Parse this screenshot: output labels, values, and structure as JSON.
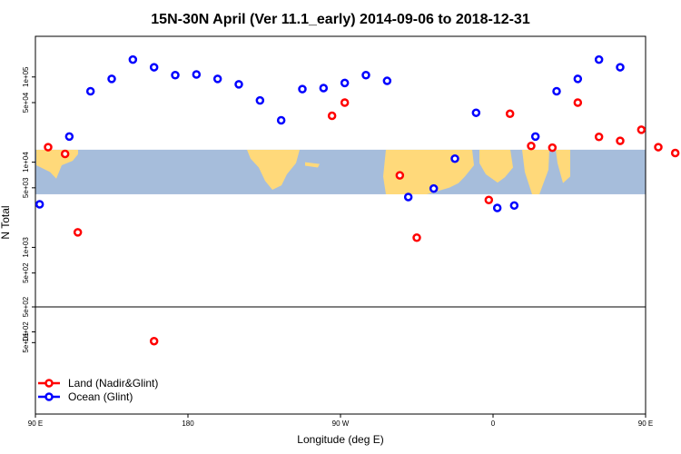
{
  "chart_data": {
    "type": "scatter",
    "title": "15N-30N April (Ver 11.1_early)   2014-09-06 to 2018-12-31",
    "xlabel": "Longitude (deg E)",
    "ylabel": "N Total",
    "xlim": [
      90,
      450
    ],
    "x_ticks": [
      {
        "value": 90,
        "label": "90 E"
      },
      {
        "value": 180,
        "label": "180"
      },
      {
        "value": 270,
        "label": "90 W"
      },
      {
        "value": 360,
        "label": "0"
      },
      {
        "value": 450,
        "label": "90 E"
      },
      {
        "value": 540,
        "label": "180"
      }
    ],
    "y_scale": "log",
    "upper_panel": {
      "ylim": [
        200,
        300000
      ],
      "y_ticks": [
        {
          "value": 100000,
          "label": "1e+05"
        },
        {
          "value": 50000,
          "label": "5e+04"
        },
        {
          "value": 10000,
          "label": "1e+04"
        },
        {
          "value": 5000,
          "label": "5e+03"
        },
        {
          "value": 1000,
          "label": "1e+03"
        },
        {
          "value": 500,
          "label": "5e+02"
        }
      ],
      "map_band": {
        "ymin": 4200,
        "ymax": 14000,
        "ocean_color": "#a6bddb",
        "land_color": "#ffd97a"
      }
    },
    "lower_panel": {
      "ylim": [
        0.5,
        500
      ],
      "y_ticks": [
        {
          "value": 500,
          "label": "5e+02"
        },
        {
          "value": 100,
          "label": "1e+02"
        },
        {
          "value": 50,
          "label": "5e+01"
        }
      ]
    },
    "series": [
      {
        "name": "Land (Nadir&Glint)",
        "color": "#ff0000",
        "points": [
          {
            "x": 97.5,
            "y": 15000
          },
          {
            "x": 107.5,
            "y": 12500
          },
          {
            "x": 115,
            "y": 1500
          },
          {
            "x": 160,
            "y": 55
          },
          {
            "x": 265,
            "y": 35000
          },
          {
            "x": 272.5,
            "y": 50000
          },
          {
            "x": 305,
            "y": 7000
          },
          {
            "x": 315,
            "y": 1300
          },
          {
            "x": 357.5,
            "y": 3600
          },
          {
            "x": 370,
            "y": 37000
          },
          {
            "x": 382.5,
            "y": 15500
          },
          {
            "x": 395,
            "y": 14800
          },
          {
            "x": 410,
            "y": 50000
          },
          {
            "x": 422.5,
            "y": 19800
          },
          {
            "x": 435,
            "y": 17800
          },
          {
            "x": 447.5,
            "y": 24000
          },
          {
            "x": 457.5,
            "y": 15000
          },
          {
            "x": 467.5,
            "y": 12800
          },
          {
            "x": 475,
            "y": 1500
          }
        ]
      },
      {
        "name": "Ocean (Glint)",
        "color": "#0000ff",
        "points": [
          {
            "x": 92.5,
            "y": 3200
          },
          {
            "x": 110,
            "y": 20000
          },
          {
            "x": 122.5,
            "y": 68000
          },
          {
            "x": 135,
            "y": 95000
          },
          {
            "x": 147.5,
            "y": 160000
          },
          {
            "x": 160,
            "y": 130000
          },
          {
            "x": 172.5,
            "y": 105000
          },
          {
            "x": 185,
            "y": 107000
          },
          {
            "x": 197.5,
            "y": 95000
          },
          {
            "x": 210,
            "y": 82000
          },
          {
            "x": 222.5,
            "y": 53000
          },
          {
            "x": 235,
            "y": 31000
          },
          {
            "x": 247.5,
            "y": 72000
          },
          {
            "x": 260,
            "y": 74000
          },
          {
            "x": 272.5,
            "y": 85000
          },
          {
            "x": 285,
            "y": 105000
          },
          {
            "x": 297.5,
            "y": 90000
          },
          {
            "x": 310,
            "y": 3900
          },
          {
            "x": 325,
            "y": 4900
          },
          {
            "x": 337.5,
            "y": 11000
          },
          {
            "x": 350,
            "y": 38000
          },
          {
            "x": 362.5,
            "y": 2900
          },
          {
            "x": 372.5,
            "y": 3100
          },
          {
            "x": 385,
            "y": 20000
          },
          {
            "x": 397.5,
            "y": 68000
          },
          {
            "x": 410,
            "y": 95000
          },
          {
            "x": 422.5,
            "y": 160000
          },
          {
            "x": 435,
            "y": 130000
          }
        ]
      }
    ],
    "legend": {
      "position": "bottom-left"
    }
  }
}
